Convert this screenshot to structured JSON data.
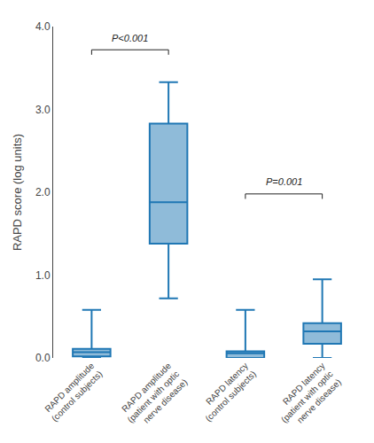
{
  "chart_data": {
    "type": "box",
    "y_label": "RAPD score (log units)",
    "categories": [
      "RAPD amplitude\n(control subjects)",
      "RAPD amplitude\n(patient with optic\nnerve disease)",
      "RAPD latency\n(control subjects)",
      "RAPD latency\n(patient with optic\nnerve disease)"
    ],
    "boxes": [
      {
        "q1": 0.02,
        "median": 0.07,
        "q3": 0.11,
        "whislo": 0.0,
        "whishi": 0.58
      },
      {
        "q1": 1.38,
        "median": 1.88,
        "q3": 2.83,
        "whislo": 0.72,
        "whishi": 3.33
      },
      {
        "q1": 0.0,
        "median": 0.055,
        "q3": 0.08,
        "whislo": 0.0,
        "whishi": 0.58
      },
      {
        "q1": 0.17,
        "median": 0.32,
        "q3": 0.42,
        "whislo": 0.0,
        "whishi": 0.95
      }
    ],
    "annotations": [
      {
        "from": "RAPD amplitude\n(control subjects)",
        "to": "RAPD amplitude\n(patient with optic\nnerve disease)",
        "y": 3.72,
        "text": "P<0.001",
        "text_y": 3.78
      },
      {
        "from": "RAPD latency\n(control subjects)",
        "to": "RAPD latency\n(patient with optic\nnerve disease)",
        "y": 1.98,
        "text": "P=0.001",
        "text_y": 2.04
      }
    ],
    "ylim": [
      0.0,
      4.0
    ],
    "yticks": [
      {
        "value": 0,
        "label": "0.0"
      },
      {
        "value": 1,
        "label": "1.0"
      },
      {
        "value": 2,
        "label": "2.0"
      },
      {
        "value": 3,
        "label": "3.0"
      },
      {
        "value": 4,
        "label": "4.0"
      }
    ],
    "grid": false
  }
}
